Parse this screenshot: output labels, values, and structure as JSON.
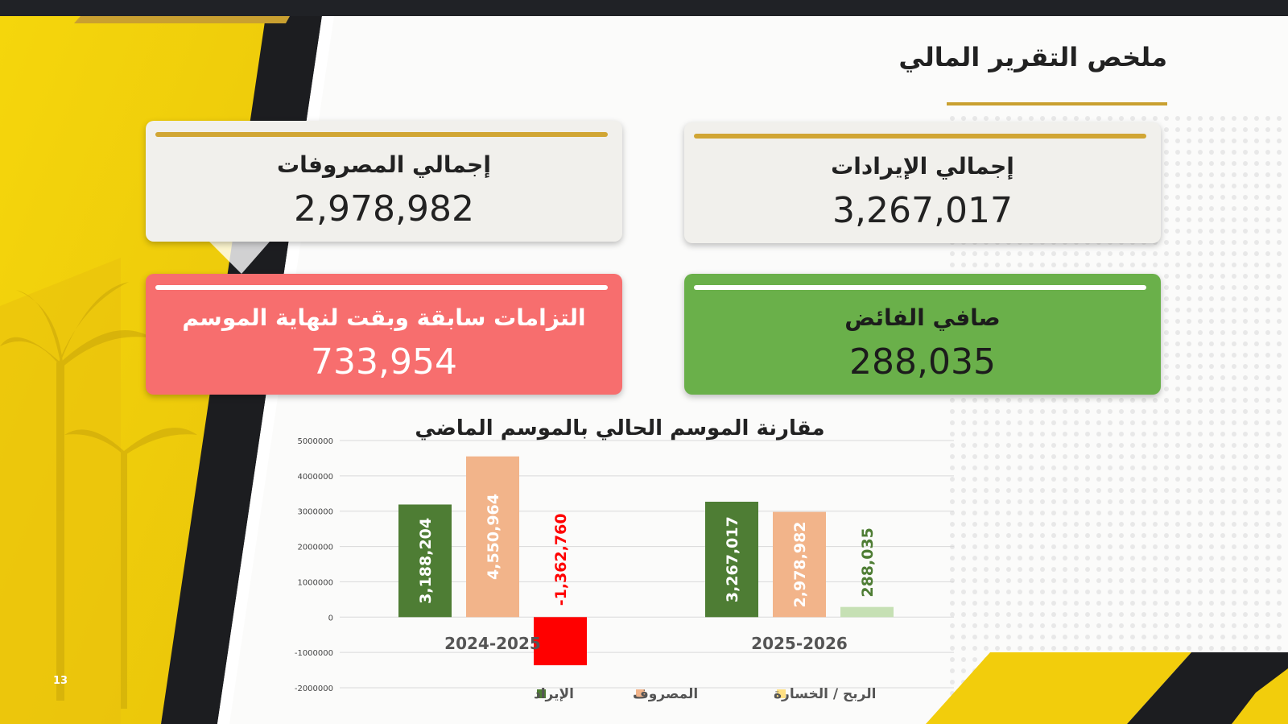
{
  "slide": {
    "title": "ملخص التقرير المالي",
    "page_number": "13"
  },
  "cards": {
    "revenue": {
      "label": "إجمالي الإيرادات",
      "value": "3,267,017"
    },
    "expenses": {
      "label": "إجمالي المصروفات",
      "value": "2,978,982"
    },
    "surplus": {
      "label": "صافي الفائض",
      "value": "288,035"
    },
    "obligations": {
      "label": "التزامات سابقة وبقت لنهاية الموسم",
      "value": "733,954"
    }
  },
  "colors": {
    "gold": "#d1a634",
    "yellow": "#f2cf0d",
    "dark": "#202226",
    "red_card": "#f76e6e",
    "green_card": "#6ab04a",
    "revenue_series": "#4e7d34",
    "expense_series": "#f2b48a",
    "loss_negative": "#ff0000",
    "profit_positive": "#c6e0b4"
  },
  "chart_data": {
    "type": "bar",
    "title": "مقارنة الموسم الحالي بالموسم الماضي",
    "categories": [
      "2024-2025",
      "2025-2026"
    ],
    "series": [
      {
        "name": "الإيراد",
        "values": [
          3188204,
          3267017
        ],
        "labels": [
          "3,188,204",
          "3,267,017"
        ]
      },
      {
        "name": "المصروف",
        "values": [
          4550964,
          2978982
        ],
        "labels": [
          "4,550,964",
          "2,978,982"
        ]
      },
      {
        "name": "الربح / الخسارة",
        "values": [
          -1362760,
          288035
        ],
        "labels": [
          "-1,362,760",
          "288,035"
        ]
      }
    ],
    "yticks": [
      "5000000",
      "4000000",
      "3000000",
      "2000000",
      "1000000",
      "0",
      "-1000000",
      "-2000000"
    ],
    "ylim": [
      -2000000,
      5000000
    ],
    "grid": true,
    "legend": "bottom"
  }
}
